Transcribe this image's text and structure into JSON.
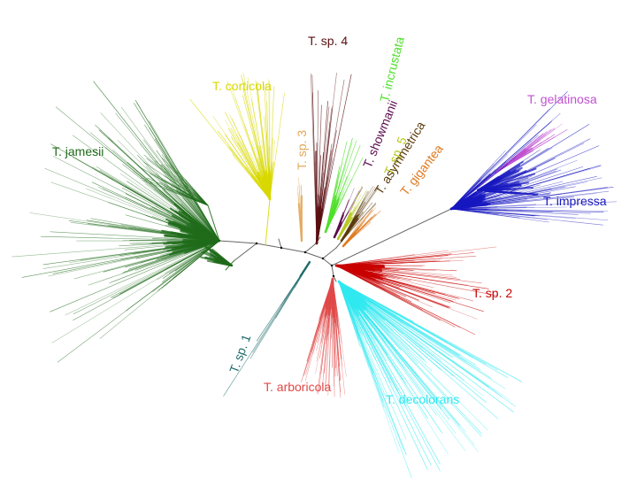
{
  "clades": [
    {
      "key": "jamesii",
      "name": "T. jamesii",
      "color": "#1f6b1a"
    },
    {
      "key": "corticola",
      "name": "T. corticola",
      "color": "#d8d800"
    },
    {
      "key": "sp3",
      "name": "T. sp. 3",
      "color": "#e3a85a"
    },
    {
      "key": "sp4",
      "name": "T. sp. 4",
      "color": "#5a0f12"
    },
    {
      "key": "incrustata",
      "name": "T. incrustata",
      "color": "#4fe02a"
    },
    {
      "key": "showmanii",
      "name": "T. showmanii",
      "color": "#5a0a4a"
    },
    {
      "key": "sp5",
      "name": "T. sp. 5",
      "color": "#b8c820"
    },
    {
      "key": "asymmetrica",
      "name": "T. asymmetrica",
      "color": "#5a3a0a"
    },
    {
      "key": "gigantea",
      "name": "T. gigantea",
      "color": "#e07a20"
    },
    {
      "key": "gelatinosa",
      "name": "T. gelatinosa",
      "color": "#c050d0"
    },
    {
      "key": "impressa",
      "name": "T. impressa",
      "color": "#1818c0"
    },
    {
      "key": "sp2",
      "name": "T. sp. 2",
      "color": "#c80000"
    },
    {
      "key": "decolorans",
      "name": "T. decolorans",
      "color": "#30e8f0"
    },
    {
      "key": "arboricola",
      "name": "T. arboricola",
      "color": "#e04848"
    },
    {
      "key": "sp1",
      "name": "T. sp. 1",
      "color": "#1f6b6b"
    }
  ],
  "backbone_color": "#555555"
}
